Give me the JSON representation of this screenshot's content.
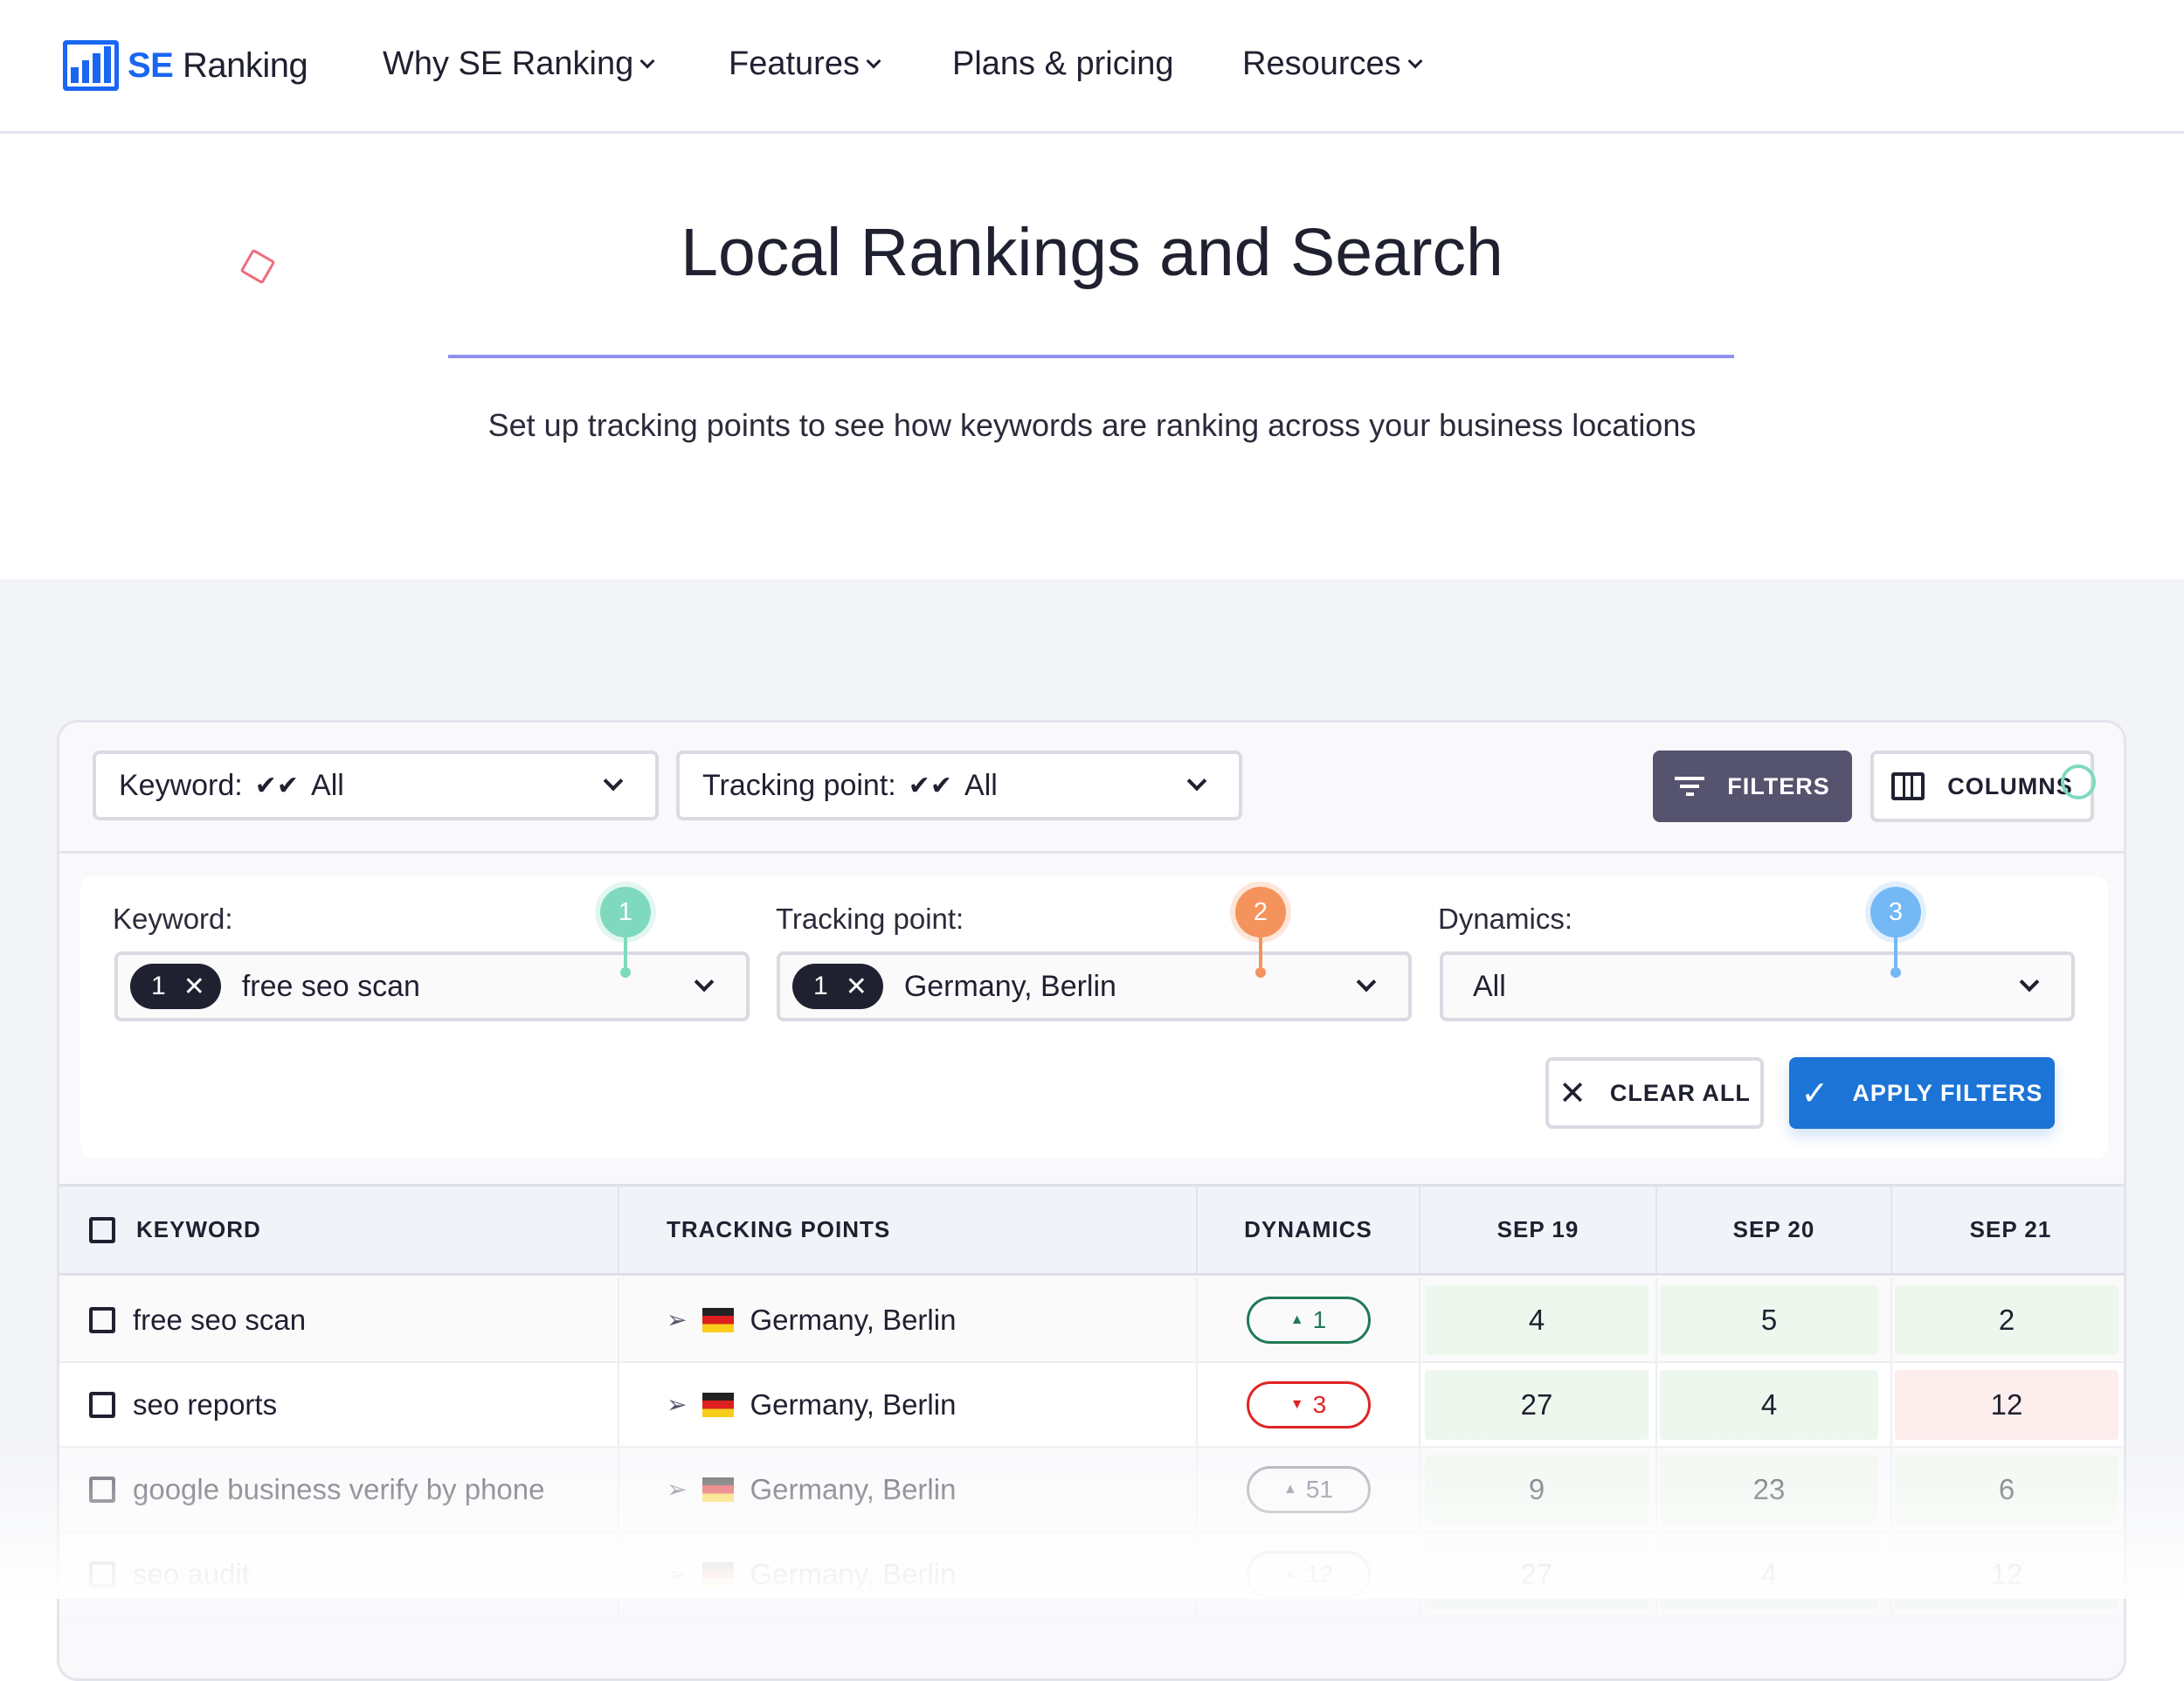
{
  "nav": {
    "logo_se": "SE",
    "logo_ranking": "Ranking",
    "items": [
      "Why SE Ranking",
      "Features",
      "Plans & pricing",
      "Resources"
    ]
  },
  "hero": {
    "title": "Local Rankings and Search",
    "subtitle": "Set up tracking points to see how keywords are ranking across your business locations"
  },
  "toolbar": {
    "keyword_label": "Keyword:",
    "keyword_value": "All",
    "tracking_label": "Tracking point:",
    "tracking_value": "All",
    "filters": "FILTERS",
    "columns": "COLUMNS"
  },
  "filters": {
    "keyword": {
      "label": "Keyword:",
      "count": "1",
      "value": "free seo scan",
      "step": "1"
    },
    "tracking": {
      "label": "Tracking point:",
      "count": "1",
      "value": "Germany, Berlin",
      "step": "2"
    },
    "dynamics": {
      "label": "Dynamics:",
      "value": "All",
      "step": "3"
    },
    "clear": "CLEAR ALL",
    "apply": "APPLY FILTERS"
  },
  "colors": {
    "accent": "#1b74d6",
    "filters_btn": "#56536f",
    "step1": "#7fd9bf",
    "step2": "#f5935c",
    "step3": "#74b8f5",
    "up": "#1f7a55",
    "down": "#e02424",
    "good": "#eef7ee",
    "bad": "#fdeded"
  },
  "table": {
    "headers": [
      "KEYWORD",
      "TRACKING POINTS",
      "DYNAMICS",
      "SEP 19",
      "SEP 20",
      "SEP 21"
    ],
    "rows": [
      {
        "keyword": "free seo scan",
        "location": "Germany, Berlin",
        "dir": "up",
        "dyn": "1",
        "v": [
          "4",
          "5",
          "2"
        ],
        "bad": [
          false,
          false,
          false
        ]
      },
      {
        "keyword": "seo reports",
        "location": "Germany, Berlin",
        "dir": "down",
        "dyn": "3",
        "v": [
          "27",
          "4",
          "12"
        ],
        "bad": [
          false,
          false,
          true
        ]
      },
      {
        "keyword": "google business verify by phone",
        "location": "Germany, Berlin",
        "dir": "up",
        "dyn": "51",
        "v": [
          "9",
          "23",
          "6"
        ],
        "bad": [
          false,
          false,
          false
        ]
      },
      {
        "keyword": "seo audit",
        "location": "Germany, Berlin",
        "dir": "up",
        "dyn": "12",
        "v": [
          "27",
          "4",
          "12"
        ],
        "bad": [
          false,
          false,
          false
        ]
      }
    ]
  }
}
